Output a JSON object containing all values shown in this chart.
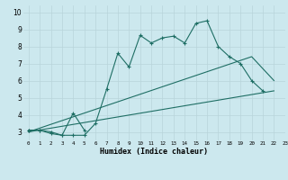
{
  "xlabel": "Humidex (Indice chaleur)",
  "background_color": "#cce8ee",
  "grid_color": "#b8d4da",
  "line_color": "#1e6e64",
  "xlim": [
    -0.5,
    23.0
  ],
  "ylim": [
    2.5,
    10.4
  ],
  "xticks": [
    0,
    1,
    2,
    3,
    4,
    5,
    6,
    7,
    8,
    9,
    10,
    11,
    12,
    13,
    14,
    15,
    16,
    17,
    18,
    19,
    20,
    21,
    22,
    23
  ],
  "yticks": [
    3,
    4,
    5,
    6,
    7,
    8,
    9,
    10
  ],
  "series1_x": [
    0,
    1,
    2,
    3,
    4,
    5,
    6,
    7,
    8,
    9,
    10,
    11,
    12,
    13,
    14,
    15,
    16,
    17,
    18,
    19,
    20,
    21
  ],
  "series1_y": [
    3.1,
    3.1,
    2.9,
    2.8,
    2.8,
    2.8,
    3.5,
    5.5,
    7.6,
    6.8,
    8.65,
    8.2,
    8.5,
    8.6,
    8.2,
    9.35,
    9.5,
    8.0,
    7.4,
    7.0,
    6.0,
    5.4
  ],
  "series2_x": [
    0,
    1,
    2,
    3,
    4,
    5
  ],
  "series2_y": [
    3.1,
    3.1,
    3.0,
    2.8,
    4.1,
    3.1
  ],
  "series3_x": [
    0,
    22
  ],
  "series3_y": [
    3.0,
    5.4
  ],
  "series4_x": [
    0,
    20,
    22
  ],
  "series4_y": [
    3.0,
    7.4,
    6.0
  ],
  "marker_size": 2.5,
  "linewidth": 0.8
}
